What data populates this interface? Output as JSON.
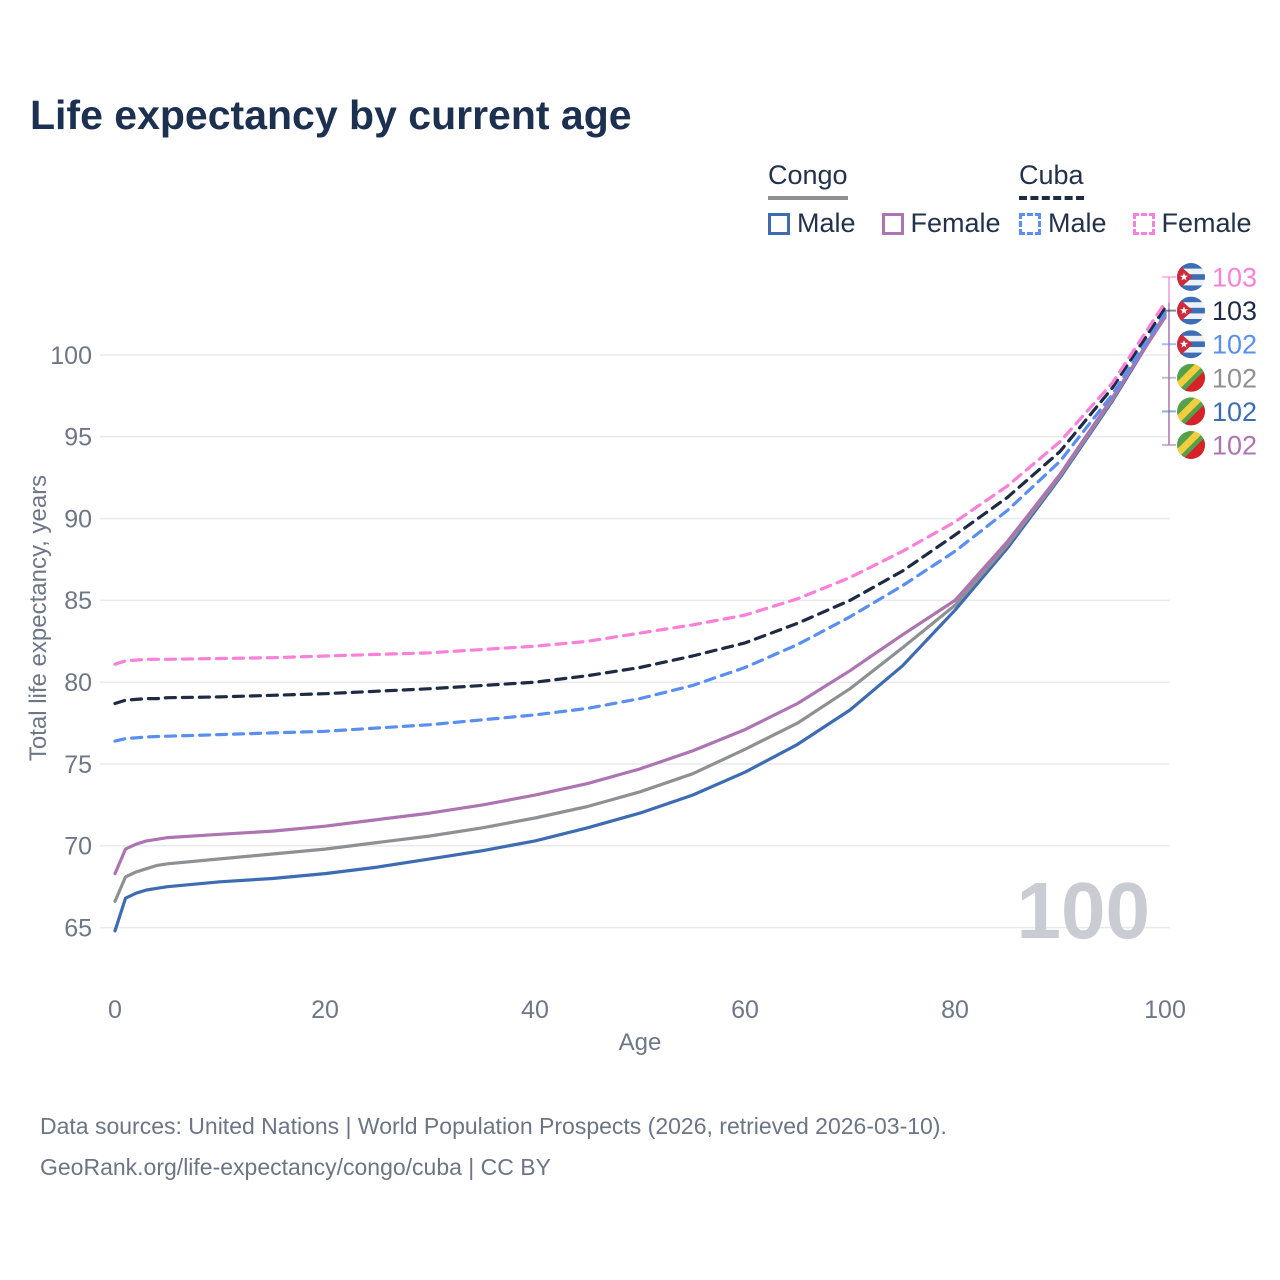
{
  "title": "Life expectancy by current age",
  "legend": {
    "groups": [
      {
        "name": "Congo",
        "line_style": "solid",
        "underline_color": "#8f9094",
        "items": [
          {
            "label": "Male",
            "color": "#3e6cb3"
          },
          {
            "label": "Female",
            "color": "#ad74b2"
          }
        ]
      },
      {
        "name": "Cuba",
        "line_style": "dashed",
        "underline_color": "#1d2b43",
        "items": [
          {
            "label": "Male",
            "color": "#5a8ff0"
          },
          {
            "label": "Female",
            "color": "#fb80d9"
          }
        ]
      }
    ]
  },
  "chart_data": {
    "type": "line",
    "title": "Life expectancy by current age",
    "xlabel": "Age",
    "ylabel": "Total life expectancy, years",
    "x_ticks": [
      0,
      20,
      40,
      60,
      80,
      100
    ],
    "y_ticks": [
      65,
      70,
      75,
      80,
      85,
      90,
      95,
      100
    ],
    "xlim": [
      0,
      100
    ],
    "ylim": [
      63,
      104
    ],
    "grid": "horizontal",
    "legend_position": "top-right",
    "watermark_age": "100",
    "ages": [
      0,
      1,
      2,
      3,
      4,
      5,
      10,
      15,
      20,
      25,
      30,
      35,
      40,
      45,
      50,
      55,
      60,
      65,
      70,
      75,
      80,
      85,
      90,
      95,
      100
    ],
    "series": [
      {
        "name": "Congo Male",
        "country": "Congo",
        "sex": "Male",
        "color": "#3e6cb3",
        "dash": "solid",
        "flag": "congo",
        "values": [
          64.8,
          66.8,
          67.1,
          67.3,
          67.4,
          67.5,
          67.8,
          68.0,
          68.3,
          68.7,
          69.2,
          69.7,
          70.3,
          71.1,
          72.0,
          73.1,
          74.5,
          76.2,
          78.3,
          81.0,
          84.4,
          88.2,
          92.5,
          97.2,
          102.4
        ],
        "end_label": "102",
        "end_rank": 4
      },
      {
        "name": "Congo Total",
        "country": "Congo",
        "sex": "Both",
        "color": "#8f9094",
        "dash": "solid",
        "flag": "congo",
        "values": [
          66.6,
          68.1,
          68.4,
          68.6,
          68.8,
          68.9,
          69.2,
          69.5,
          69.8,
          70.2,
          70.6,
          71.1,
          71.7,
          72.4,
          73.3,
          74.4,
          75.9,
          77.5,
          79.6,
          82.1,
          84.7,
          88.4,
          92.6,
          97.3,
          102.5
        ],
        "end_label": "102",
        "end_rank": 3
      },
      {
        "name": "Congo Female",
        "country": "Congo",
        "sex": "Female",
        "color": "#ad74b2",
        "dash": "solid",
        "flag": "congo",
        "values": [
          68.3,
          69.8,
          70.1,
          70.3,
          70.4,
          70.5,
          70.7,
          70.9,
          71.2,
          71.6,
          72.0,
          72.5,
          73.1,
          73.8,
          74.7,
          75.8,
          77.1,
          78.7,
          80.7,
          82.9,
          85.0,
          88.6,
          92.7,
          97.4,
          102.3
        ],
        "end_label": "102",
        "end_rank": 5
      },
      {
        "name": "Cuba Male",
        "country": "Cuba",
        "sex": "Male",
        "color": "#5a8ff0",
        "dash": "dashed",
        "flag": "cuba",
        "values": [
          76.4,
          76.55,
          76.6,
          76.65,
          76.68,
          76.7,
          76.8,
          76.9,
          77.0,
          77.2,
          77.4,
          77.7,
          78.0,
          78.4,
          79.0,
          79.8,
          80.9,
          82.3,
          84.0,
          85.9,
          88.0,
          90.5,
          93.5,
          97.6,
          102.6
        ],
        "end_label": "102",
        "end_rank": 2
      },
      {
        "name": "Cuba Total",
        "country": "Cuba",
        "sex": "Both",
        "color": "#1d2b43",
        "dash": "dashed",
        "flag": "cuba",
        "values": [
          78.7,
          78.9,
          78.95,
          79.0,
          79.0,
          79.05,
          79.1,
          79.2,
          79.3,
          79.45,
          79.6,
          79.8,
          80.0,
          80.4,
          80.9,
          81.6,
          82.4,
          83.6,
          85.0,
          86.8,
          89.0,
          91.3,
          94.1,
          98.0,
          102.9
        ],
        "end_label": "103",
        "end_rank": 1
      },
      {
        "name": "Cuba Female",
        "country": "Cuba",
        "sex": "Female",
        "color": "#fb80d9",
        "dash": "dashed",
        "flag": "cuba",
        "values": [
          81.1,
          81.3,
          81.35,
          81.4,
          81.4,
          81.4,
          81.45,
          81.5,
          81.6,
          81.7,
          81.8,
          82.0,
          82.2,
          82.5,
          83.0,
          83.5,
          84.1,
          85.1,
          86.4,
          88.0,
          89.8,
          92.0,
          94.7,
          98.3,
          103.2
        ],
        "end_label": "103",
        "end_rank": 0
      }
    ]
  },
  "footer": {
    "line1": "Data sources: United Nations | World Population Prospects (2026, retrieved 2026-03-10).",
    "line2": "GeoRank.org/life-expectancy/congo/cuba | CC BY"
  },
  "colors": {
    "title": "#1c3050",
    "axis_text": "#6e7787",
    "gridline": "#e9eaee",
    "watermark": "#c9ccd3",
    "connector_pink": "#f5a9e1",
    "connector_purple": "#b78cbb",
    "flag_cuba_blue": "#3d6db4",
    "flag_cuba_white": "#eef1f5",
    "flag_cuba_red": "#cc2b3c",
    "flag_congo_green": "#55a04a",
    "flag_congo_yellow": "#f2ce3e",
    "flag_congo_red": "#d8222a"
  }
}
